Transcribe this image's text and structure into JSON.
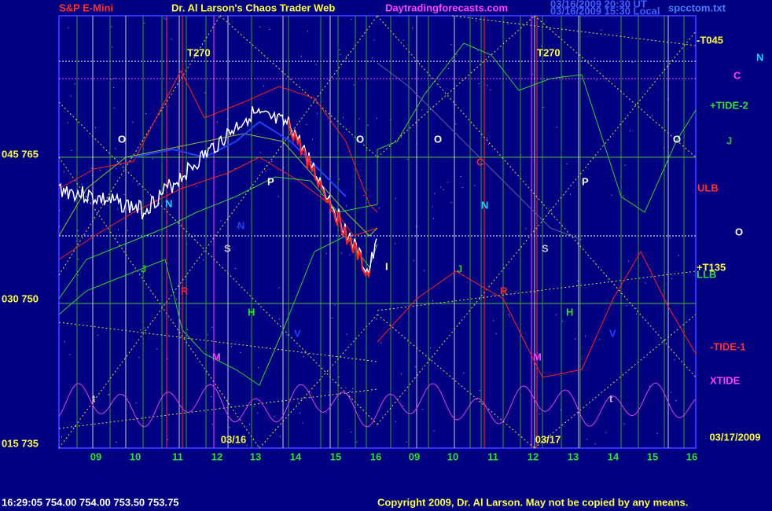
{
  "header": {
    "symbol": "S&P E-Mini",
    "title": "Dr. Al Larson's Chaos Trader Web",
    "site": "Daytradingforecasts.com",
    "stamp1": "03/16/2009 20:30 UT",
    "stamp2": "03/16/2009 15:30 Local",
    "file": "spcctom.txt"
  },
  "y_axis_labels": [
    "045  765",
    "030  750",
    "015  735"
  ],
  "x_axis_labels": [
    "09",
    "10",
    "11",
    "12",
    "13",
    "14",
    "15",
    "16",
    "09",
    "10",
    "11",
    "12",
    "13",
    "14",
    "15",
    "16"
  ],
  "date_labels": [
    "03/16",
    "03/17",
    "03/17/2009"
  ],
  "right_labels": [
    "-T045",
    "N",
    "C",
    "+TIDE-2",
    "J",
    "ULB",
    "O",
    "+T135",
    "LLB",
    "-TIDE-1",
    "XTIDE"
  ],
  "chart_letters": [
    "T270",
    "T270",
    "O",
    "O",
    "O",
    "P",
    "P",
    "S",
    "S",
    "N",
    "N",
    "N",
    "J",
    "J",
    "R",
    "R",
    "H",
    "H",
    "V",
    "V",
    "M",
    "M",
    "t",
    "t",
    "C",
    "I",
    "O"
  ],
  "footer": {
    "quote": "16:29:05  754.00 754.00 753.50 753.75",
    "copyright": "Copyright 2009, Dr. Al Larson. May not be copied by any means."
  }
}
